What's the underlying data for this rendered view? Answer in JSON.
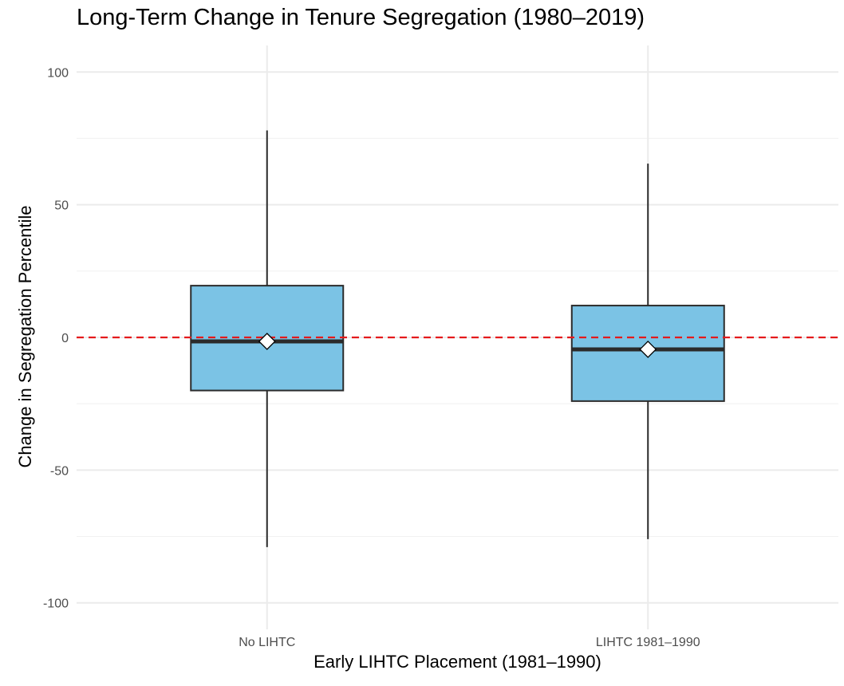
{
  "chart_data": {
    "type": "box",
    "title": "Long-Term Change in Tenure Segregation (1980–2019)",
    "xlabel": "Early LIHTC Placement (1981–1990)",
    "ylabel": "Change in Segregation Percentile",
    "categories": [
      "No LIHTC",
      "LIHTC 1981–1990"
    ],
    "ylim": [
      -110,
      110
    ],
    "yticks": [
      -100,
      -50,
      0,
      50,
      100
    ],
    "grid": true,
    "legend": "none",
    "reference_line": {
      "y": 0,
      "style": "dashed",
      "color": "#e41a1c"
    },
    "boxes": [
      {
        "category": "No LIHTC",
        "min": -79,
        "q1": -20,
        "median": -1.5,
        "q3": 19.5,
        "max": 78,
        "mean": -1.5
      },
      {
        "category": "LIHTC 1981–1990",
        "min": -76,
        "q1": -24,
        "median": -4.5,
        "q3": 12,
        "max": 65.5,
        "mean": -4.5
      }
    ],
    "colors": {
      "box_fill": "#7bc3e5",
      "box_stroke": "#2b2b2b",
      "mean_marker": "#ffffff",
      "grid": "#ebebeb"
    }
  }
}
